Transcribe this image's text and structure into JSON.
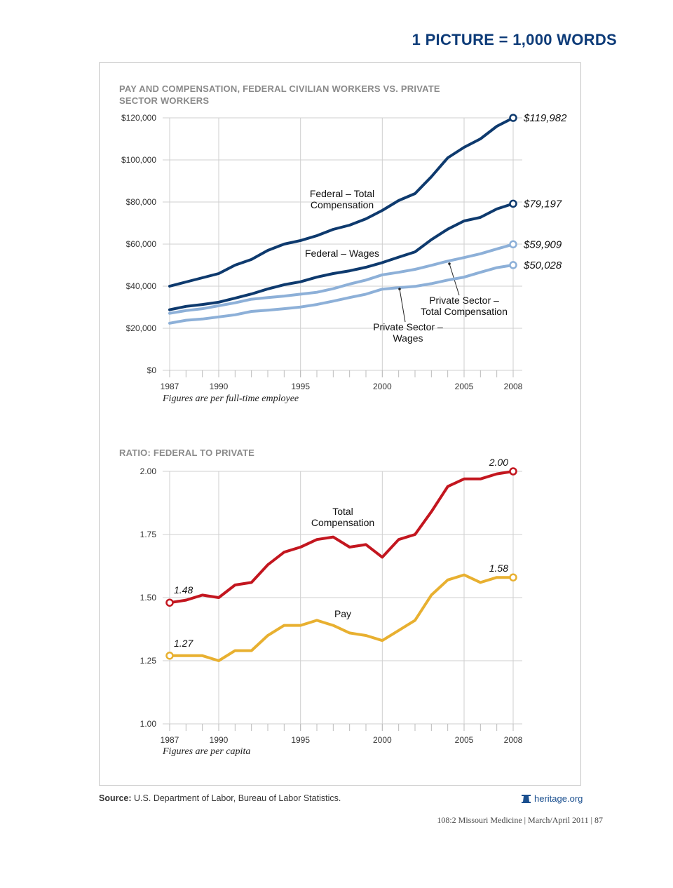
{
  "header": {
    "headline": "1 PICTURE = 1,000 WORDS"
  },
  "chart_data": [
    {
      "type": "line",
      "title": "PAY AND COMPENSATION, FEDERAL CIVILIAN WORKERS VS. PRIVATE SECTOR WORKERS",
      "note": "Figures are per full-time employee",
      "xlabel": "",
      "ylabel": "",
      "ylim": [
        0,
        120000
      ],
      "y_ticks": [
        0,
        20000,
        40000,
        60000,
        80000,
        100000,
        120000
      ],
      "y_tick_labels": [
        "$0",
        "$20,000",
        "$40,000",
        "$60,000",
        "$80,000",
        "$100,000",
        "$120,000"
      ],
      "x_ticks": [
        1987,
        1990,
        1995,
        2000,
        2005,
        2008
      ],
      "x_tick_labels": [
        "1987",
        "1990",
        "1995",
        "2000",
        "2005",
        "2008"
      ],
      "x": [
        1987,
        1988,
        1989,
        1990,
        1991,
        1992,
        1993,
        1994,
        1995,
        1996,
        1997,
        1998,
        1999,
        2000,
        2001,
        2002,
        2003,
        2004,
        2005,
        2006,
        2007,
        2008
      ],
      "grid": true,
      "series": [
        {
          "name": "Federal – Total Compensation",
          "label_lines": [
            "Federal – Total",
            "Compensation"
          ],
          "color": "#0e3a6e",
          "end_label": "$119,982",
          "values": [
            40000,
            42000,
            44000,
            46000,
            50000,
            52700,
            57000,
            60000,
            61700,
            64000,
            67000,
            69000,
            72000,
            76000,
            80700,
            84000,
            92000,
            101000,
            106000,
            110000,
            116000,
            119982
          ]
        },
        {
          "name": "Federal – Wages",
          "label_lines": [
            "Federal – Wages"
          ],
          "color": "#0e3a6e",
          "end_label": "$79,197",
          "values": [
            28800,
            30400,
            31300,
            32400,
            34300,
            36300,
            38700,
            40700,
            42100,
            44300,
            46000,
            47300,
            49000,
            51200,
            53800,
            56300,
            62100,
            67100,
            71000,
            72700,
            76700,
            79197
          ]
        },
        {
          "name": "Private Sector – Total Compensation",
          "label_lines": [
            "Private Sector –",
            "Total Compensation"
          ],
          "color": "#8db0d8",
          "end_label": "$59,909",
          "values": [
            27100,
            28400,
            29300,
            30700,
            32100,
            33800,
            34600,
            35300,
            36200,
            37100,
            38800,
            41000,
            42900,
            45400,
            46600,
            48000,
            49900,
            51900,
            53600,
            55400,
            57700,
            59909
          ]
        },
        {
          "name": "Private Sector – Wages",
          "label_lines": [
            "Private Sector –",
            "Wages"
          ],
          "color": "#8db0d8",
          "end_label": "$50,028",
          "values": [
            22400,
            23800,
            24400,
            25400,
            26400,
            28000,
            28600,
            29300,
            30100,
            31300,
            32900,
            34600,
            36200,
            38600,
            39300,
            39900,
            41200,
            42900,
            44300,
            46600,
            48800,
            50028
          ]
        }
      ]
    },
    {
      "type": "line",
      "title": "RATIO: FEDERAL TO PRIVATE",
      "note": "Figures are per capita",
      "xlabel": "",
      "ylabel": "",
      "ylim": [
        1.0,
        2.0
      ],
      "y_ticks": [
        1.0,
        1.25,
        1.5,
        1.75,
        2.0
      ],
      "y_tick_labels": [
        "1.00",
        "1.25",
        "1.50",
        "1.75",
        "2.00"
      ],
      "x_ticks": [
        1987,
        1990,
        1995,
        2000,
        2005,
        2008
      ],
      "x_tick_labels": [
        "1987",
        "1990",
        "1995",
        "2000",
        "2005",
        "2008"
      ],
      "x": [
        1987,
        1988,
        1989,
        1990,
        1991,
        1992,
        1993,
        1994,
        1995,
        1996,
        1997,
        1998,
        1999,
        2000,
        2001,
        2002,
        2003,
        2004,
        2005,
        2006,
        2007,
        2008
      ],
      "grid": true,
      "series": [
        {
          "name": "Total Compensation",
          "label_lines": [
            "Total",
            "Compensation"
          ],
          "color": "#c3161f",
          "start_label": "1.48",
          "end_label": "2.00",
          "values": [
            1.48,
            1.49,
            1.51,
            1.5,
            1.55,
            1.56,
            1.63,
            1.68,
            1.7,
            1.73,
            1.74,
            1.7,
            1.71,
            1.66,
            1.73,
            1.75,
            1.84,
            1.94,
            1.97,
            1.97,
            1.99,
            2.0
          ]
        },
        {
          "name": "Pay",
          "label_lines": [
            "Pay"
          ],
          "color": "#e8b030",
          "start_label": "1.27",
          "end_label": "1.58",
          "values": [
            1.27,
            1.27,
            1.27,
            1.25,
            1.29,
            1.29,
            1.35,
            1.39,
            1.39,
            1.41,
            1.39,
            1.36,
            1.35,
            1.33,
            1.37,
            1.41,
            1.51,
            1.57,
            1.59,
            1.56,
            1.58,
            1.58
          ]
        }
      ]
    }
  ],
  "footer": {
    "source_label": "Source:",
    "source_text": "U.S. Department of Labor, Bureau of Labor Statistics.",
    "brand": "heritage.org",
    "folio": "108:2 Missouri Medicine | March/April 2011 | 87"
  }
}
